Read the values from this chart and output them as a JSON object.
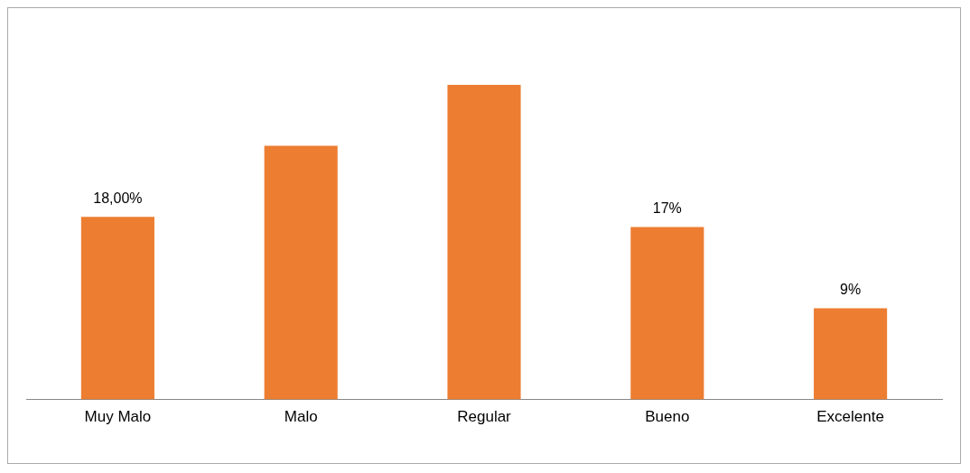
{
  "chart_data": {
    "type": "bar",
    "categories": [
      "Muy Malo",
      "Malo",
      "Regular",
      "Bueno",
      "Excelente"
    ],
    "values": [
      18,
      25,
      31,
      17,
      9
    ],
    "value_labels": [
      "18,00%",
      null,
      null,
      "17%",
      "9%"
    ],
    "color": "#ed7d31",
    "grid": false,
    "legend": false
  }
}
